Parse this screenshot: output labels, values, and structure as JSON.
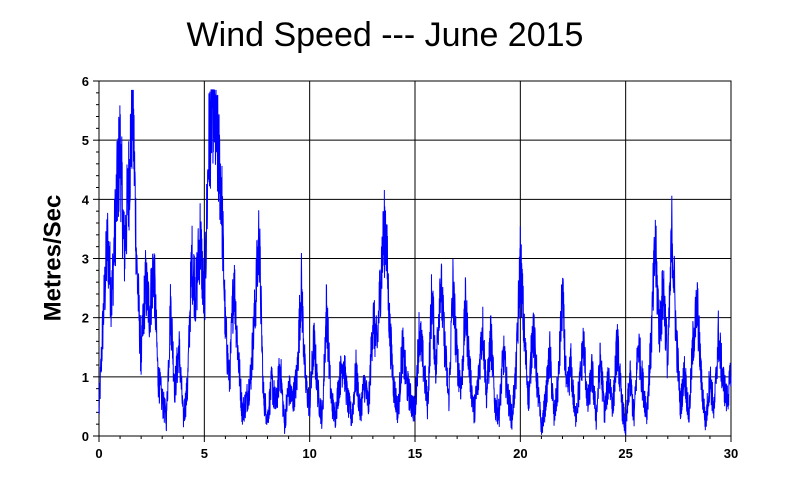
{
  "chart_data": {
    "type": "line",
    "title": "Wind Speed --- June 2015",
    "xlabel": "",
    "ylabel": "Metres/Sec",
    "xlim": [
      0,
      30
    ],
    "ylim": [
      0,
      6
    ],
    "x_ticks": [
      0,
      5,
      10,
      15,
      20,
      25,
      30
    ],
    "y_ticks": [
      0,
      1,
      2,
      3,
      4,
      5,
      6
    ],
    "grid": true,
    "line_color": "#0000ff",
    "series": [
      {
        "x": [
          0,
          0.2,
          0.4,
          0.6,
          0.8,
          1.0,
          1.2,
          1.4,
          1.6,
          1.8,
          2.0,
          2.2,
          2.4,
          2.6,
          2.8,
          3.0,
          3.2,
          3.4,
          3.6,
          3.8,
          4.0,
          4.2,
          4.4,
          4.6,
          4.8,
          5.0,
          5.2,
          5.4,
          5.6,
          5.8,
          6.0,
          6.2,
          6.4,
          6.6,
          6.8,
          7.0,
          7.2,
          7.4,
          7.6,
          7.8,
          8.0,
          8.2,
          8.4,
          8.6,
          8.8,
          9.0,
          9.2,
          9.4,
          9.6,
          9.8,
          10.0,
          10.2,
          10.4,
          10.6,
          10.8,
          11.0,
          11.2,
          11.4,
          11.6,
          11.8,
          12.0,
          12.2,
          12.4,
          12.6,
          12.8,
          13.0,
          13.2,
          13.4,
          13.6,
          13.8,
          14.0,
          14.2,
          14.4,
          14.6,
          14.8,
          15.0,
          15.2,
          15.4,
          15.6,
          15.8,
          16.0,
          16.2,
          16.4,
          16.6,
          16.8,
          17.0,
          17.2,
          17.4,
          17.6,
          17.8,
          18.0,
          18.2,
          18.4,
          18.6,
          18.8,
          19.0,
          19.2,
          19.4,
          19.6,
          19.8,
          20.0,
          20.2,
          20.4,
          20.6,
          20.8,
          21.0,
          21.2,
          21.4,
          21.6,
          21.8,
          22.0,
          22.2,
          22.4,
          22.6,
          22.8,
          23.0,
          23.2,
          23.4,
          23.6,
          23.8,
          24.0,
          24.2,
          24.4,
          24.6,
          24.8,
          25.0,
          25.2,
          25.4,
          25.6,
          25.8,
          26.0,
          26.2,
          26.4,
          26.6,
          26.8,
          27.0,
          27.2,
          27.4,
          27.6,
          27.8,
          28.0,
          28.2,
          28.4,
          28.6,
          28.8,
          29.0,
          29.2,
          29.4,
          29.6,
          29.8,
          30.0
        ],
        "y": [
          0.4,
          2.0,
          3.3,
          2.3,
          3.8,
          4.9,
          3.1,
          4.2,
          5.7,
          2.8,
          1.3,
          2.6,
          2.1,
          2.9,
          1.0,
          0.6,
          0.3,
          2.2,
          0.8,
          1.5,
          0.3,
          0.8,
          3.0,
          2.4,
          3.4,
          2.2,
          4.8,
          5.8,
          4.9,
          4.3,
          1.8,
          0.9,
          2.7,
          1.4,
          0.4,
          0.6,
          1.0,
          2.1,
          3.4,
          0.7,
          0.3,
          0.9,
          0.5,
          1.2,
          0.2,
          0.8,
          0.6,
          1.0,
          2.6,
          0.9,
          0.5,
          1.6,
          0.7,
          0.3,
          2.2,
          0.7,
          0.3,
          0.9,
          1.3,
          0.6,
          0.3,
          1.1,
          0.4,
          0.9,
          0.5,
          2.0,
          1.5,
          2.9,
          3.6,
          1.8,
          0.8,
          0.4,
          1.5,
          0.9,
          0.6,
          0.4,
          1.8,
          1.2,
          0.5,
          2.4,
          1.1,
          2.7,
          1.6,
          0.6,
          2.5,
          1.3,
          0.8,
          2.2,
          1.1,
          0.4,
          0.9,
          1.9,
          0.7,
          1.7,
          0.5,
          0.4,
          1.4,
          0.7,
          0.3,
          1.1,
          3.0,
          1.6,
          0.6,
          1.9,
          0.9,
          0.1,
          0.6,
          1.4,
          0.3,
          0.9,
          2.4,
          0.7,
          1.2,
          0.3,
          0.8,
          1.6,
          0.5,
          1.1,
          0.3,
          1.3,
          0.4,
          1.0,
          0.5,
          1.6,
          0.6,
          0.1,
          1.0,
          0.3,
          1.6,
          0.9,
          0.4,
          1.5,
          3.2,
          1.8,
          2.5,
          1.2,
          3.5,
          1.7,
          0.5,
          1.1,
          0.3,
          1.6,
          2.2,
          0.9,
          0.2,
          1.0,
          0.4,
          1.7,
          1.0,
          0.6,
          1.0
        ]
      }
    ]
  }
}
